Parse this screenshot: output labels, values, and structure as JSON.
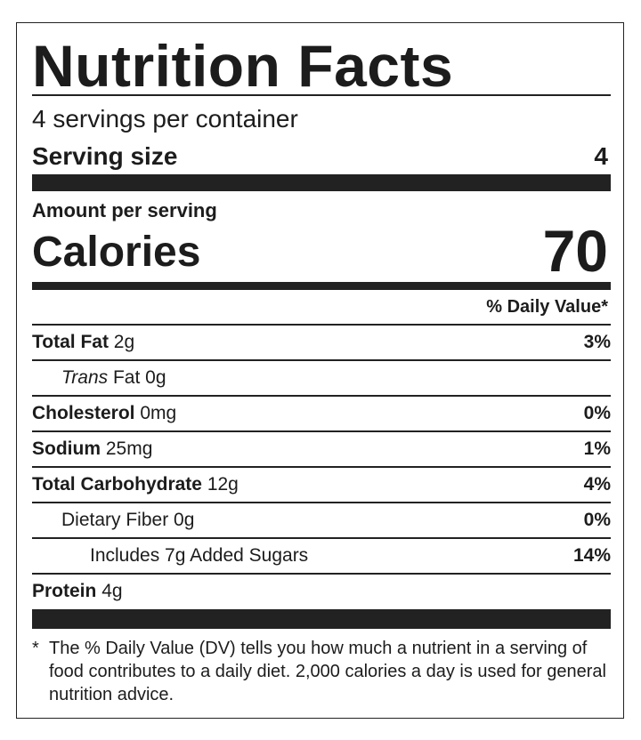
{
  "title": "Nutrition Facts",
  "servings": "4 servings per container",
  "serving_size": {
    "label": "Serving size",
    "value": "4"
  },
  "amount_per_serving": "Amount per serving",
  "calories": {
    "label": "Calories",
    "value": "70"
  },
  "daily_value_header": "% Daily Value*",
  "rows": [
    {
      "label": "Total Fat",
      "amount": "2g",
      "dv": "3%"
    },
    {
      "prefix": "Trans",
      "label": "Fat",
      "amount": "0g"
    },
    {
      "label": "Cholesterol",
      "amount": "0mg",
      "dv": "0%"
    },
    {
      "label": "Sodium",
      "amount": "25mg",
      "dv": "1%"
    },
    {
      "label": "Total Carbohydrate",
      "amount": "12g",
      "dv": "4%"
    },
    {
      "label": "Dietary Fiber",
      "amount": "0g",
      "dv": "0%"
    },
    {
      "label": "Includes 7g Added Sugars",
      "dv": "14%"
    },
    {
      "label": "Protein",
      "amount": "4g"
    }
  ],
  "footnote": {
    "marker": "*",
    "text": "The % Daily Value (DV) tells you how much a nutrient in a serving of food contributes to a daily diet. 2,000 calories a day is used for general nutrition advice."
  }
}
